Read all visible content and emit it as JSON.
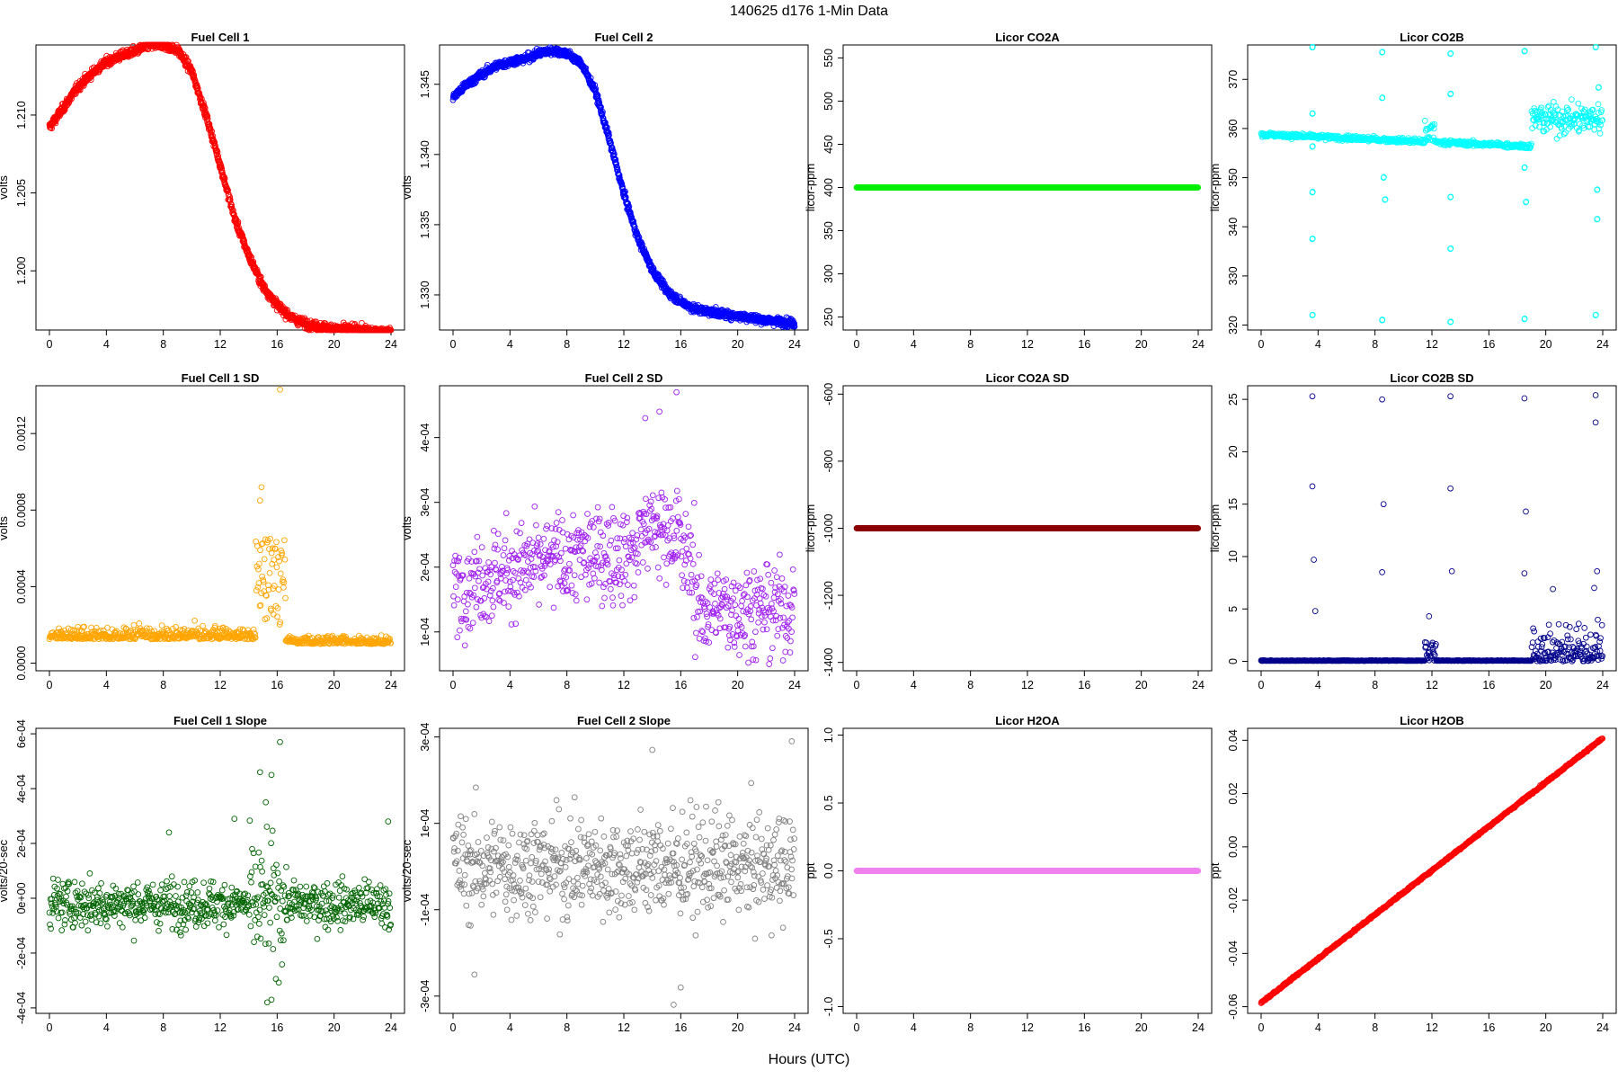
{
  "figure": {
    "title": "140625    d176    1-Min Data",
    "xlabel": "Hours (UTC)"
  },
  "panels": [
    {
      "id": "fc1",
      "title": "Fuel Cell 1",
      "ylabel": "volts",
      "color": "#ff0000",
      "kind": "curve",
      "ylim": [
        1.1962,
        1.2145
      ],
      "yticks": [
        1.2,
        1.205,
        1.21
      ],
      "ytick_labels": [
        "1.200",
        "1.205",
        "1.210"
      ],
      "knots": [
        [
          0,
          1.2092
        ],
        [
          1,
          1.2105
        ],
        [
          2,
          1.2118
        ],
        [
          3,
          1.2127
        ],
        [
          4,
          1.2134
        ],
        [
          5,
          1.2138
        ],
        [
          6,
          1.2141
        ],
        [
          7,
          1.2145
        ],
        [
          8,
          1.2145
        ],
        [
          9,
          1.2142
        ],
        [
          10,
          1.2128
        ],
        [
          11,
          1.21
        ],
        [
          12,
          1.2068
        ],
        [
          13,
          1.2034
        ],
        [
          14,
          1.201
        ],
        [
          15,
          1.199
        ],
        [
          16,
          1.1978
        ],
        [
          17,
          1.197
        ],
        [
          18,
          1.1966
        ],
        [
          19,
          1.1964
        ],
        [
          20,
          1.1963
        ],
        [
          22,
          1.1962
        ],
        [
          24,
          1.196
        ]
      ],
      "noise": 0.0002
    },
    {
      "id": "fc2",
      "title": "Fuel Cell 2",
      "ylabel": "volts",
      "color": "#0000ff",
      "kind": "curve",
      "ylim": [
        1.3275,
        1.3478
      ],
      "yticks": [
        1.33,
        1.335,
        1.34,
        1.345
      ],
      "ytick_labels": [
        "1.330",
        "1.335",
        "1.340",
        "1.345"
      ],
      "knots": [
        [
          0,
          1.3441
        ],
        [
          1,
          1.345
        ],
        [
          2,
          1.3457
        ],
        [
          3,
          1.3463
        ],
        [
          4,
          1.3466
        ],
        [
          5,
          1.3468
        ],
        [
          6,
          1.3472
        ],
        [
          7,
          1.3474
        ],
        [
          8,
          1.3472
        ],
        [
          9,
          1.3465
        ],
        [
          10,
          1.3445
        ],
        [
          11,
          1.341
        ],
        [
          12,
          1.3372
        ],
        [
          13,
          1.334
        ],
        [
          14,
          1.3318
        ],
        [
          15,
          1.3303
        ],
        [
          16,
          1.3295
        ],
        [
          17,
          1.329
        ],
        [
          18,
          1.3288
        ],
        [
          20,
          1.3285
        ],
        [
          22,
          1.3282
        ],
        [
          24,
          1.328
        ]
      ],
      "noise": 0.0002
    },
    {
      "id": "co2a",
      "title": "Licor CO2A",
      "ylabel": "licor-ppm",
      "color": "#00ee00",
      "kind": "flat",
      "value": 400,
      "ylim": [
        235,
        565
      ],
      "yticks": [
        250,
        300,
        350,
        400,
        450,
        500,
        550
      ],
      "ytick_labels": [
        "250",
        "300",
        "350",
        "400",
        "450",
        "500",
        "550"
      ]
    },
    {
      "id": "co2b",
      "title": "Licor CO2B",
      "ylabel": "licor-ppm",
      "color": "#00ffff",
      "kind": "co2b",
      "ylim": [
        319,
        377
      ],
      "yticks": [
        320,
        330,
        340,
        350,
        360,
        370
      ],
      "ytick_labels": [
        "320",
        "330",
        "340",
        "350",
        "360",
        "370"
      ]
    },
    {
      "id": "fc1sd",
      "title": "Fuel Cell 1 SD",
      "ylabel": "volts",
      "color": "#ffa500",
      "kind": "sd1",
      "ylim": [
        -4e-05,
        0.00145
      ],
      "yticks": [
        0.0,
        0.0004,
        0.0008,
        0.0012
      ],
      "ytick_labels": [
        "0.0000",
        "0.0004",
        "0.0008",
        "0.0012"
      ]
    },
    {
      "id": "fc2sd",
      "title": "Fuel Cell 2 SD",
      "ylabel": "volts",
      "color": "#a020f0",
      "kind": "sd2",
      "ylim": [
        4e-05,
        0.00048
      ],
      "yticks": [
        0.0001,
        0.0002,
        0.0003,
        0.0004
      ],
      "ytick_labels": [
        "1e-04",
        "2e-04",
        "3e-04",
        "4e-04"
      ]
    },
    {
      "id": "co2asd",
      "title": "Licor CO2A SD",
      "ylabel": "licor-ppm",
      "color": "#8b0000",
      "kind": "flat",
      "value": -1000,
      "ylim": [
        -1425,
        -575
      ],
      "yticks": [
        -1400,
        -1200,
        -1000,
        -800,
        -600
      ],
      "ytick_labels": [
        "-1400",
        "-1200",
        "-1000",
        "-800",
        "-600"
      ]
    },
    {
      "id": "co2bsd",
      "title": "Licor CO2B SD",
      "ylabel": "licor-ppm",
      "color": "#00008b",
      "kind": "co2bsd",
      "ylim": [
        -0.9,
        26.3
      ],
      "yticks": [
        0,
        5,
        10,
        15,
        20,
        25
      ],
      "ytick_labels": [
        "0",
        "5",
        "10",
        "15",
        "20",
        "25"
      ]
    },
    {
      "id": "fc1slope",
      "title": "Fuel Cell 1 Slope",
      "ylabel": "volts/20-sec",
      "color": "#006400",
      "kind": "slope1",
      "ylim": [
        -0.00042,
        0.00062
      ],
      "yticks": [
        -0.0004,
        -0.0002,
        0.0,
        0.0002,
        0.0004,
        0.0006
      ],
      "ytick_labels": [
        "-4e-04",
        "-2e-04",
        "0e+00",
        "2e-04",
        "4e-04",
        "6e-04"
      ]
    },
    {
      "id": "fc2slope",
      "title": "Fuel Cell 2 Slope",
      "ylabel": "volts/20-sec",
      "color": "#808080",
      "kind": "slope2",
      "ylim": [
        -0.00034,
        0.00032
      ],
      "yticks": [
        -0.0003,
        -0.0001,
        0.0001,
        0.0003
      ],
      "ytick_labels": [
        "-3e-04",
        "-1e-04",
        "1e-04",
        "3e-04"
      ]
    },
    {
      "id": "h2oa",
      "title": "Licor H2OA",
      "ylabel": "ppt",
      "color": "#ee82ee",
      "kind": "flat",
      "value": 0.0,
      "ylim": [
        -1.05,
        1.05
      ],
      "yticks": [
        -1.0,
        -0.5,
        0.0,
        0.5,
        1.0
      ],
      "ytick_labels": [
        "-1.0",
        "-0.5",
        "0.0",
        "0.5",
        "1.0"
      ]
    },
    {
      "id": "h2ob",
      "title": "Licor H2OB",
      "ylabel": "ppt",
      "color": "#ff0000",
      "kind": "line",
      "y0": -0.0585,
      "y1": 0.0408,
      "ylim": [
        -0.0625,
        0.0445
      ],
      "yticks": [
        -0.06,
        -0.04,
        -0.02,
        0.0,
        0.02,
        0.04
      ],
      "ytick_labels": [
        "-0.06",
        "-0.04",
        "-0.02",
        "0.00",
        "0.02",
        "0.04"
      ]
    }
  ],
  "chart_data": [
    {
      "type": "scatter",
      "title": "Fuel Cell 1",
      "xlabel": "Hours (UTC)",
      "ylabel": "volts",
      "xlim": [
        0,
        24
      ],
      "ylim": [
        1.1962,
        1.2145
      ],
      "series": [
        {
          "name": "Fuel Cell 1",
          "color": "#ff0000",
          "x": [
            0,
            2,
            4,
            6,
            8,
            10,
            12,
            14,
            16,
            18,
            20,
            22,
            24
          ],
          "y": [
            1.2092,
            1.2118,
            1.2134,
            1.2141,
            1.2145,
            1.2128,
            1.2068,
            1.201,
            1.1978,
            1.1966,
            1.1963,
            1.1962,
            1.196
          ]
        }
      ]
    },
    {
      "type": "scatter",
      "title": "Fuel Cell 2",
      "xlabel": "Hours (UTC)",
      "ylabel": "volts",
      "xlim": [
        0,
        24
      ],
      "ylim": [
        1.3275,
        1.3478
      ],
      "series": [
        {
          "name": "Fuel Cell 2",
          "color": "#0000ff",
          "x": [
            0,
            2,
            4,
            6,
            8,
            10,
            12,
            14,
            16,
            18,
            20,
            22,
            24
          ],
          "y": [
            1.3441,
            1.3457,
            1.3466,
            1.3472,
            1.3472,
            1.3445,
            1.3372,
            1.3318,
            1.3295,
            1.3288,
            1.3285,
            1.3282,
            1.328
          ]
        }
      ]
    },
    {
      "type": "scatter",
      "title": "Licor CO2A",
      "xlabel": "Hours (UTC)",
      "ylabel": "licor-ppm",
      "xlim": [
        0,
        24
      ],
      "ylim": [
        235,
        565
      ],
      "series": [
        {
          "name": "Licor CO2A",
          "color": "#00ee00",
          "x": [
            0,
            24
          ],
          "y": [
            400,
            400
          ]
        }
      ]
    },
    {
      "type": "scatter",
      "title": "Licor CO2B",
      "xlabel": "Hours (UTC)",
      "ylabel": "licor-ppm",
      "xlim": [
        0,
        24
      ],
      "ylim": [
        319,
        377
      ],
      "series": [
        {
          "name": "Licor CO2B",
          "color": "#00ffff",
          "x": [
            0,
            3.5,
            8.5,
            12,
            13.3,
            18.5,
            19.5,
            21,
            24
          ],
          "y": [
            358.7,
            358.0,
            357.0,
            358.5,
            356.3,
            356.2,
            364,
            362,
            360
          ]
        }
      ]
    },
    {
      "type": "scatter",
      "title": "Fuel Cell 1 SD",
      "xlabel": "Hours (UTC)",
      "ylabel": "volts",
      "xlim": [
        0,
        24
      ],
      "ylim": [
        -4e-05,
        0.00145
      ],
      "series": [
        {
          "name": "Fuel Cell 1 SD",
          "color": "#ffa500",
          "x": [
            0,
            8,
            14.5,
            15,
            16.5,
            24
          ],
          "y": [
            0.00012,
            0.00015,
            0.0004,
            0.0006,
            0.00012,
            0.0001
          ]
        }
      ]
    },
    {
      "type": "scatter",
      "title": "Fuel Cell 2 SD",
      "xlabel": "Hours (UTC)",
      "ylabel": "volts",
      "xlim": [
        0,
        24
      ],
      "ylim": [
        4e-05,
        0.00048
      ],
      "series": [
        {
          "name": "Fuel Cell 2 SD",
          "color": "#a020f0",
          "x": [
            0,
            6,
            12,
            15,
            18,
            24
          ],
          "y": [
            0.00016,
            0.00019,
            0.00021,
            0.00025,
            0.00016,
            0.00013
          ]
        }
      ]
    },
    {
      "type": "scatter",
      "title": "Licor CO2A SD",
      "xlabel": "Hours (UTC)",
      "ylabel": "licor-ppm",
      "xlim": [
        0,
        24
      ],
      "ylim": [
        -1425,
        -575
      ],
      "series": [
        {
          "name": "Licor CO2A SD",
          "color": "#8b0000",
          "x": [
            0,
            24
          ],
          "y": [
            -1000,
            -1000
          ]
        }
      ]
    },
    {
      "type": "scatter",
      "title": "Licor CO2B SD",
      "xlabel": "Hours (UTC)",
      "ylabel": "licor-ppm",
      "xlim": [
        0,
        24
      ],
      "ylim": [
        -0.9,
        26.3
      ],
      "series": [
        {
          "name": "Licor CO2B SD",
          "color": "#00008b",
          "x": [
            3.6,
            8.5,
            13.3,
            18.5,
            23.5,
            23.5
          ],
          "y": [
            25.3,
            25.0,
            25.3,
            25.1,
            25.4,
            22.8
          ]
        }
      ]
    },
    {
      "type": "scatter",
      "title": "Fuel Cell 1 Slope",
      "xlabel": "Hours (UTC)",
      "ylabel": "volts/20-sec",
      "xlim": [
        0,
        24
      ],
      "ylim": [
        -0.00042,
        0.00062
      ],
      "series": [
        {
          "name": "Fuel Cell 1 Slope",
          "color": "#006400",
          "x": [
            0,
            8,
            14.5,
            15,
            16.2,
            24
          ],
          "y": [
            0,
            0,
            -0.0001,
            -0.0003,
            0.00057,
            0
          ]
        }
      ]
    },
    {
      "type": "scatter",
      "title": "Fuel Cell 2 Slope",
      "xlabel": "Hours (UTC)",
      "ylabel": "volts/20-sec",
      "xlim": [
        0,
        24
      ],
      "ylim": [
        -0.00034,
        0.00032
      ],
      "series": [
        {
          "name": "Fuel Cell 2 Slope",
          "color": "#808080",
          "x": [
            0,
            8,
            14,
            15.5,
            23.8
          ],
          "y": [
            0,
            0,
            0.00027,
            -0.00032,
            0.00029
          ]
        }
      ]
    },
    {
      "type": "scatter",
      "title": "Licor H2OA",
      "xlabel": "Hours (UTC)",
      "ylabel": "ppt",
      "xlim": [
        0,
        24
      ],
      "ylim": [
        -1.05,
        1.05
      ],
      "series": [
        {
          "name": "Licor H2OA",
          "color": "#ee82ee",
          "x": [
            0,
            24
          ],
          "y": [
            0,
            0
          ]
        }
      ]
    },
    {
      "type": "scatter",
      "title": "Licor H2OB",
      "xlabel": "Hours (UTC)",
      "ylabel": "ppt",
      "xlim": [
        0,
        24
      ],
      "ylim": [
        -0.0625,
        0.0445
      ],
      "series": [
        {
          "name": "Licor H2OB",
          "color": "#ff0000",
          "x": [
            0,
            24
          ],
          "y": [
            -0.0585,
            0.0408
          ]
        }
      ]
    }
  ],
  "x_axis": {
    "ticks": [
      0,
      4,
      8,
      12,
      16,
      20,
      24
    ],
    "tick_labels": [
      "0",
      "4",
      "8",
      "12",
      "16",
      "20",
      "24"
    ]
  }
}
